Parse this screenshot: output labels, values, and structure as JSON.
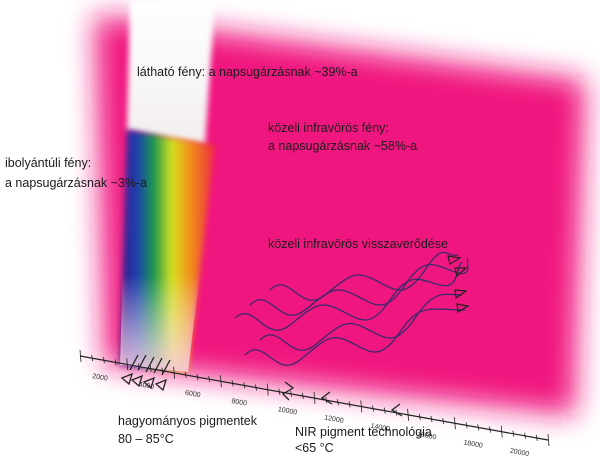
{
  "labels": {
    "visible": "látható fény: a napsugárzásnak ~39%-a",
    "nir_title": "közeli infravörös fény:",
    "nir_share": "a napsugárzásnak ~58%-a",
    "uv_title": "ibolyántúli fény:",
    "uv_share": "a napsugárzásnak ~3%-a",
    "reflection": "közeli infravörös visszaverődése",
    "conventional_title": "hagyományos pigmentek",
    "conventional_temp": "80 – 85°C",
    "nir_tech_title": "NIR pigment technológia",
    "nir_tech_temp": "<65 °C"
  },
  "axis": {
    "labels": [
      "2000",
      "4000",
      "6000",
      "8000",
      "10000",
      "12000",
      "14000",
      "16000",
      "18000",
      "20000"
    ]
  }
}
